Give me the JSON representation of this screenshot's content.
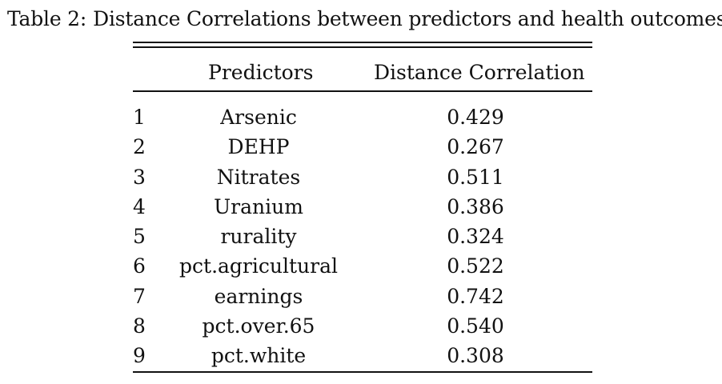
{
  "caption": {
    "label": "Table 2:",
    "text": "Distance Correlations between predictors and health outcomes"
  },
  "table": {
    "headers": {
      "index": "",
      "predictors": "Predictors",
      "distance_correlation": "Distance Correlation"
    },
    "rows": [
      {
        "index": "1",
        "predictor": "Arsenic",
        "value": "0.429"
      },
      {
        "index": "2",
        "predictor": "DEHP",
        "value": "0.267"
      },
      {
        "index": "3",
        "predictor": "Nitrates",
        "value": "0.511"
      },
      {
        "index": "4",
        "predictor": "Uranium",
        "value": "0.386"
      },
      {
        "index": "5",
        "predictor": "rurality",
        "value": "0.324"
      },
      {
        "index": "6",
        "predictor": "pct.agricultural",
        "value": "0.522"
      },
      {
        "index": "7",
        "predictor": "earnings",
        "value": "0.742"
      },
      {
        "index": "8",
        "predictor": "pct.over.65",
        "value": "0.540"
      },
      {
        "index": "9",
        "predictor": "pct.white",
        "value": "0.308"
      }
    ]
  }
}
